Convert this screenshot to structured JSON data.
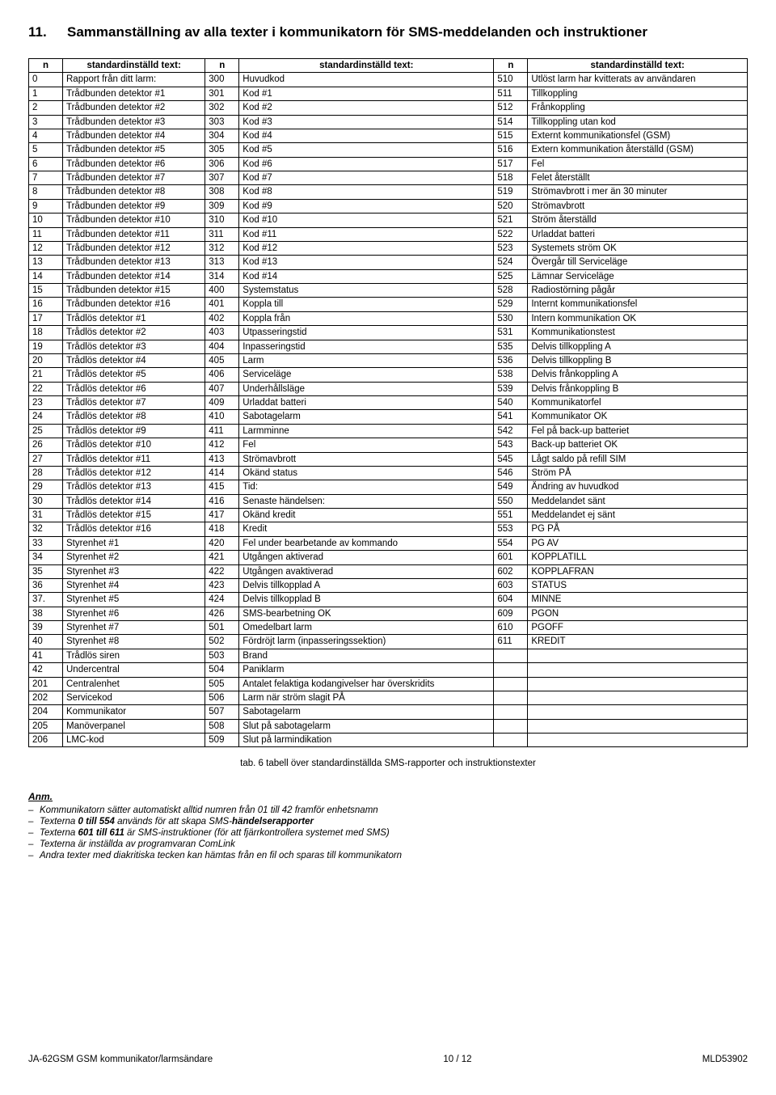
{
  "section_number": "11.",
  "section_title": "Sammanställning av alla texter i kommunikatorn för SMS-meddelanden och instruktioner",
  "headers": {
    "n": "n",
    "text": "standardinställd text:"
  },
  "columns": [
    [
      [
        "0",
        "Rapport från ditt larm:"
      ],
      [
        "1",
        "Trådbunden detektor #1"
      ],
      [
        "2",
        "Trådbunden detektor #2"
      ],
      [
        "3",
        "Trådbunden detektor #3"
      ],
      [
        "4",
        "Trådbunden detektor #4"
      ],
      [
        "5",
        "Trådbunden detektor #5"
      ],
      [
        "6",
        "Trådbunden detektor #6"
      ],
      [
        "7",
        "Trådbunden detektor #7"
      ],
      [
        "8",
        "Trådbunden detektor #8"
      ],
      [
        "9",
        "Trådbunden detektor #9"
      ],
      [
        "10",
        "Trådbunden detektor #10"
      ],
      [
        "11",
        "Trådbunden detektor #11"
      ],
      [
        "12",
        "Trådbunden detektor #12"
      ],
      [
        "13",
        "Trådbunden detektor #13"
      ],
      [
        "14",
        "Trådbunden detektor #14"
      ],
      [
        "15",
        "Trådbunden detektor #15"
      ],
      [
        "16",
        "Trådbunden detektor #16"
      ],
      [
        "17",
        "Trådlös detektor #1"
      ],
      [
        "18",
        "Trådlös detektor #2"
      ],
      [
        "19",
        "Trådlös detektor #3"
      ],
      [
        "20",
        "Trådlös detektor #4"
      ],
      [
        "21",
        "Trådlös detektor #5"
      ],
      [
        "22",
        "Trådlös detektor #6"
      ],
      [
        "23",
        "Trådlös detektor #7"
      ],
      [
        "24",
        "Trådlös detektor #8"
      ],
      [
        "25",
        "Trådlös detektor #9"
      ],
      [
        "26",
        "Trådlös detektor #10"
      ],
      [
        "27",
        "Trådlös detektor #11"
      ],
      [
        "28",
        "Trådlös detektor #12"
      ],
      [
        "29",
        "Trådlös detektor #13"
      ],
      [
        "30",
        "Trådlös detektor #14"
      ],
      [
        "31",
        "Trådlös detektor #15"
      ],
      [
        "32",
        "Trådlös detektor #16"
      ],
      [
        "33",
        "Styrenhet #1"
      ],
      [
        "34",
        "Styrenhet #2"
      ],
      [
        "35",
        "Styrenhet #3"
      ],
      [
        "36",
        "Styrenhet #4"
      ],
      [
        "37.",
        "Styrenhet #5"
      ],
      [
        "38",
        "Styrenhet #6"
      ],
      [
        "39",
        "Styrenhet #7"
      ],
      [
        "40",
        "Styrenhet #8"
      ],
      [
        "41",
        "Trådlös siren"
      ],
      [
        "42",
        "Undercentral"
      ],
      [
        "201",
        "Centralenhet"
      ],
      [
        "202",
        "Servicekod"
      ],
      [
        "204",
        "Kommunikator"
      ],
      [
        "205",
        "Manöverpanel"
      ],
      [
        "206",
        "LMC-kod"
      ]
    ],
    [
      [
        "300",
        "Huvudkod"
      ],
      [
        "301",
        "Kod #1"
      ],
      [
        "302",
        "Kod #2"
      ],
      [
        "303",
        "Kod #3"
      ],
      [
        "304",
        "Kod #4"
      ],
      [
        "305",
        "Kod #5"
      ],
      [
        "306",
        "Kod #6"
      ],
      [
        "307",
        "Kod #7"
      ],
      [
        "308",
        "Kod #8"
      ],
      [
        "309",
        "Kod #9"
      ],
      [
        "310",
        "Kod #10"
      ],
      [
        "311",
        "Kod #11"
      ],
      [
        "312",
        "Kod #12"
      ],
      [
        "313",
        "Kod #13"
      ],
      [
        "314",
        "Kod #14"
      ],
      [
        "400",
        "Systemstatus"
      ],
      [
        "401",
        "Koppla till"
      ],
      [
        "402",
        "Koppla från"
      ],
      [
        "403",
        "Utpasseringstid"
      ],
      [
        "404",
        "Inpasseringstid"
      ],
      [
        "405",
        "Larm"
      ],
      [
        "406",
        "Serviceläge"
      ],
      [
        "407",
        "Underhållsläge"
      ],
      [
        "409",
        "Urladdat batteri"
      ],
      [
        "410",
        "Sabotagelarm"
      ],
      [
        "411",
        "Larmminne"
      ],
      [
        "412",
        "Fel"
      ],
      [
        "413",
        "Strömavbrott"
      ],
      [
        "414",
        "Okänd status"
      ],
      [
        "415",
        "Tid:"
      ],
      [
        "416",
        "Senaste händelsen:"
      ],
      [
        "417",
        "Okänd kredit"
      ],
      [
        "418",
        "Kredit"
      ],
      [
        "420",
        "Fel under bearbetande av kommando"
      ],
      [
        "421",
        "Utgången aktiverad"
      ],
      [
        "422",
        "Utgången avaktiverad"
      ],
      [
        "423",
        "Delvis tillkopplad A"
      ],
      [
        "424",
        "Delvis tillkopplad B"
      ],
      [
        "426",
        "SMS-bearbetning OK"
      ],
      [
        "501",
        "Omedelbart larm"
      ],
      [
        "502",
        "Fördröjt larm (inpasseringssektion)"
      ],
      [
        "503",
        "Brand"
      ],
      [
        "504",
        "Paniklarm"
      ],
      [
        "505",
        "Antalet felaktiga kodangivelser har överskridits"
      ],
      [
        "506",
        "Larm när ström slagit PÅ"
      ],
      [
        "507",
        "Sabotagelarm"
      ],
      [
        "508",
        "Slut på sabotagelarm"
      ],
      [
        "509",
        "Slut på larmindikation"
      ]
    ],
    [
      [
        "510",
        "Utlöst larm har kvitterats av användaren"
      ],
      [
        "511",
        "Tillkoppling"
      ],
      [
        "512",
        "Frånkoppling"
      ],
      [
        "514",
        "Tillkoppling utan kod"
      ],
      [
        "515",
        "Externt kommunikationsfel (GSM)"
      ],
      [
        "516",
        "Extern kommunikation återställd (GSM)"
      ],
      [
        "517",
        "Fel"
      ],
      [
        "518",
        "Felet återställt"
      ],
      [
        "519",
        "Strömavbrott i mer än 30 minuter"
      ],
      [
        "520",
        "Strömavbrott"
      ],
      [
        "521",
        "Ström återställd"
      ],
      [
        "522",
        "Urladdat batteri"
      ],
      [
        "523",
        "Systemets ström OK"
      ],
      [
        "524",
        "Övergår till Serviceläge"
      ],
      [
        "525",
        "Lämnar Serviceläge"
      ],
      [
        "528",
        "Radiostörning pågår"
      ],
      [
        "529",
        "Internt kommunikationsfel"
      ],
      [
        "530",
        "Intern kommunikation OK"
      ],
      [
        "531",
        "Kommunikationstest"
      ],
      [
        "535",
        "Delvis tillkoppling A"
      ],
      [
        "536",
        "Delvis tillkoppling B"
      ],
      [
        "538",
        "Delvis frånkoppling A"
      ],
      [
        "539",
        "Delvis frånkoppling B"
      ],
      [
        "540",
        "Kommunikatorfel"
      ],
      [
        "541",
        "Kommunikator OK"
      ],
      [
        "542",
        "Fel på back-up batteriet"
      ],
      [
        "543",
        "Back-up batteriet OK"
      ],
      [
        "545",
        "Lågt saldo på refill SIM"
      ],
      [
        "546",
        "Ström PÅ"
      ],
      [
        "549",
        "Ändring av huvudkod"
      ],
      [
        "550",
        "Meddelandet sänt"
      ],
      [
        "551",
        "Meddelandet ej sänt"
      ],
      [
        "553",
        "PG PÅ"
      ],
      [
        "554",
        "PG AV"
      ],
      [
        "601",
        "KOPPLATILL"
      ],
      [
        "602",
        "KOPPLAFRAN"
      ],
      [
        "603",
        "STATUS"
      ],
      [
        "604",
        "MINNE"
      ],
      [
        "609",
        "PGON"
      ],
      [
        "610",
        "PGOFF"
      ],
      [
        "611",
        "KREDIT"
      ],
      [
        "",
        ""
      ],
      [
        "",
        ""
      ],
      [
        "",
        ""
      ],
      [
        "",
        ""
      ],
      [
        "",
        ""
      ],
      [
        "",
        ""
      ],
      [
        "",
        ""
      ]
    ]
  ],
  "caption": "tab. 6 tabell över standardinställda SMS-rapporter och instruktionstexter",
  "anm_label": "Anm.",
  "notes": [
    [
      [
        "Kommunikatorn sätter automatiskt alltid numren från 01 till 42 framför enhetsnamn",
        false
      ]
    ],
    [
      [
        "Texterna ",
        false
      ],
      [
        "0 till 554",
        true
      ],
      [
        " används för att skapa SMS-",
        false
      ],
      [
        "händelserapporter",
        true
      ]
    ],
    [
      [
        "Texterna ",
        false
      ],
      [
        "601 till 611",
        true
      ],
      [
        " är SMS-instruktioner (för att fjärrkontrollera systemet med SMS)",
        false
      ]
    ],
    [
      [
        "Texterna är inställda av programvaran ComLink",
        false
      ]
    ],
    [
      [
        "Andra texter med diakritiska tecken kan hämtas från en fil och sparas till kommunikatorn",
        false
      ]
    ]
  ],
  "footer": {
    "left": "JA-62GSM GSM kommunikator/larmsändare",
    "center": "10 / 12",
    "right": "MLD53902"
  }
}
